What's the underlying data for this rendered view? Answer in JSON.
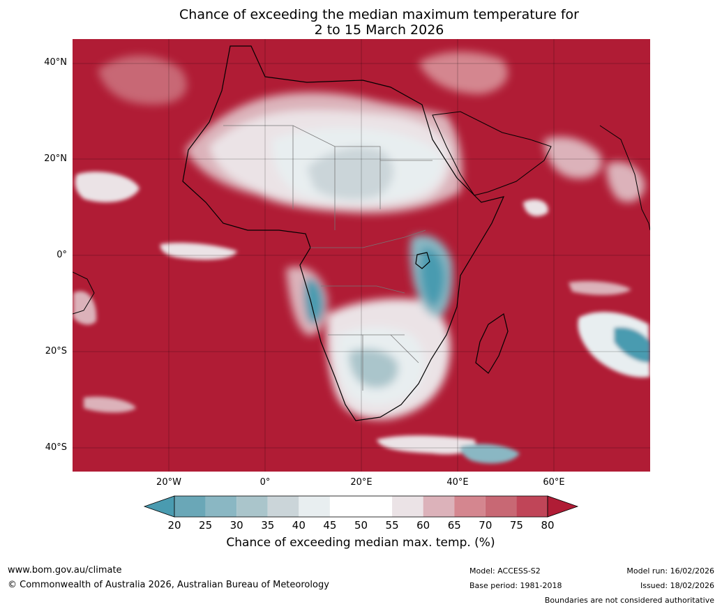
{
  "title": {
    "line1": "Chance of exceeding the median maximum temperature for",
    "line2": "2 to 15 March 2026"
  },
  "map": {
    "region": "Africa",
    "lon_range": [
      -40,
      80
    ],
    "lat_range": [
      -45,
      45
    ],
    "x_ticks": [
      "20°W",
      "0°",
      "20°E",
      "40°E",
      "60°E"
    ],
    "y_ticks": [
      "40°N",
      "20°N",
      "0°",
      "20°S",
      "40°S"
    ],
    "background_color": "#b01c35"
  },
  "colorbar": {
    "title": "Chance of exceeding median max. temp. (%)",
    "ticks": [
      "20",
      "25",
      "30",
      "35",
      "40",
      "45",
      "50",
      "55",
      "60",
      "65",
      "70",
      "75",
      "80"
    ],
    "colors": [
      "#4a9bb0",
      "#6aa7b7",
      "#8ab7c3",
      "#aac5cb",
      "#cbd5d9",
      "#e8eef0",
      "#ffffff",
      "#ffffff",
      "#ebe3e6",
      "#dcb2ba",
      "#d4868f",
      "#c86874",
      "#c04558",
      "#b01c35"
    ]
  },
  "footer": {
    "website": "www.bom.gov.au/climate",
    "copyright": "© Commonwealth of Australia 2026, Australian Bureau of Meteorology",
    "model": "Model: ACCESS-S2",
    "base_period": "Base period: 1981-2018",
    "model_run": "Model run: 16/02/2026",
    "issued": "Issued: 18/02/2026",
    "disclaimer": "Boundaries are not considered authoritative"
  }
}
